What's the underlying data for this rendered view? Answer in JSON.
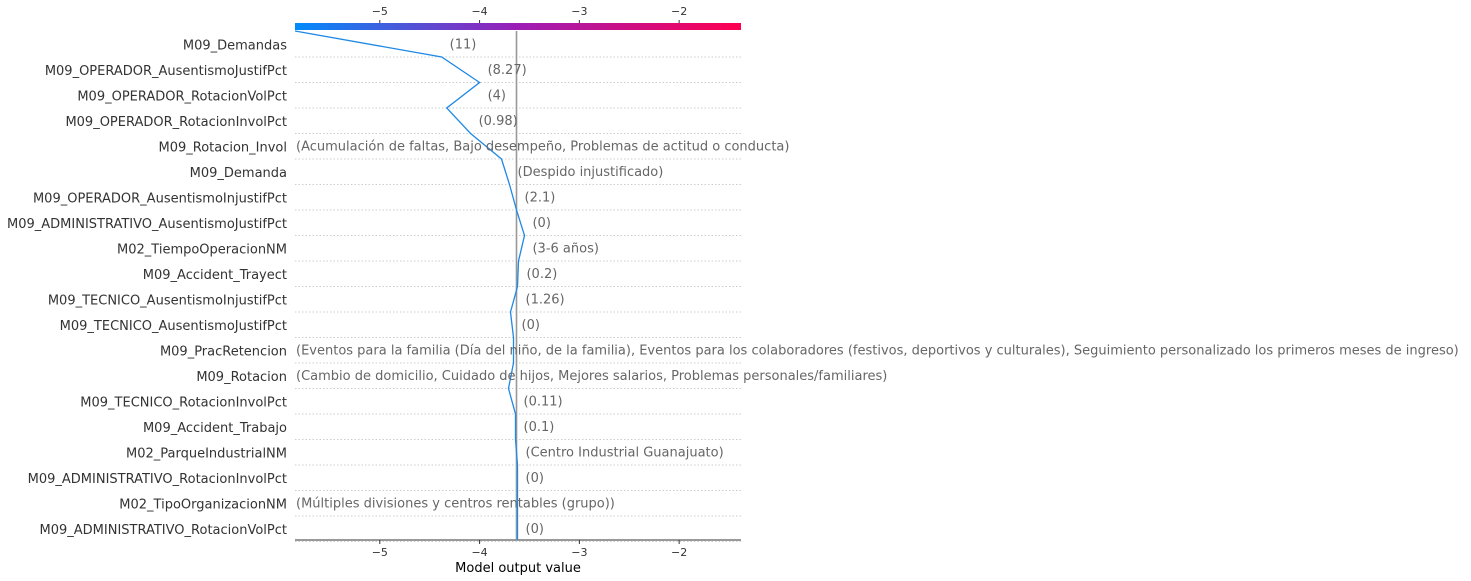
{
  "chart_data": {
    "type": "line",
    "subtype": "shap-decision-plot",
    "xlabel": "Model output value",
    "xlim": [
      -5.85,
      -1.38
    ],
    "xticks": [
      -5,
      -4,
      -3,
      -2
    ],
    "base_value": -3.63,
    "colorbar": {
      "low_color": "#008bfb",
      "mid_color": "#9c1db5",
      "high_color": "#ff0051",
      "range": [
        -5.85,
        -1.38
      ]
    },
    "line_color": "#1e88e5",
    "base_line_color": "#999999",
    "features": [
      {
        "name": "M09_Demandas",
        "value": "(11)"
      },
      {
        "name": "M09_OPERADOR_AusentismoJustifPct",
        "value": "(8.27)"
      },
      {
        "name": "M09_OPERADOR_RotacionVolPct",
        "value": "(4)"
      },
      {
        "name": "M09_OPERADOR_RotacionInvolPct",
        "value": "(0.98)"
      },
      {
        "name": "M09_Rotacion_Invol",
        "value": "(Acumulación de faltas, Bajo desempeño, Problemas de actitud o conducta)"
      },
      {
        "name": "M09_Demanda",
        "value": "(Despido injustificado)"
      },
      {
        "name": "M09_OPERADOR_AusentismoInjustifPct",
        "value": "(2.1)"
      },
      {
        "name": "M09_ADMINISTRATIVO_AusentismoJustifPct",
        "value": "(0)"
      },
      {
        "name": "M02_TiempoOperacionNM",
        "value": "(3-6 años)"
      },
      {
        "name": "M09_Accident_Trayect",
        "value": "(0.2)"
      },
      {
        "name": "M09_TECNICO_AusentismoInjustifPct",
        "value": "(1.26)"
      },
      {
        "name": "M09_TECNICO_AusentismoJustifPct",
        "value": "(0)"
      },
      {
        "name": "M09_PracRetencion",
        "value": "(Eventos para la familia (Día del niño, de la familia), Eventos para los colaboradores (festivos, deportivos y culturales), Seguimiento personalizado los primeros meses de ingreso)"
      },
      {
        "name": "M09_Rotacion",
        "value": "(Cambio de domicilio, Cuidado de hijos, Mejores salarios, Problemas personales/familiares)"
      },
      {
        "name": "M09_TECNICO_RotacionInvolPct",
        "value": "(0.11)"
      },
      {
        "name": "M09_Accident_Trabajo",
        "value": "(0.1)"
      },
      {
        "name": "M02_ParqueIndustrialNM",
        "value": "(Centro Industrial Guanajuato)"
      },
      {
        "name": "M09_ADMINISTRATIVO_RotacionInvolPct",
        "value": "(0)"
      },
      {
        "name": "M02_TipoOrganizacionNM",
        "value": "(Múltiples divisiones y centros rentables (grupo))"
      },
      {
        "name": "M09_ADMINISTRATIVO_RotacionVolPct",
        "value": "(0)"
      }
    ],
    "path_values": [
      -5.85,
      -4.38,
      -4.0,
      -4.33,
      -4.09,
      -3.78,
      -3.7,
      -3.63,
      -3.55,
      -3.61,
      -3.62,
      -3.69,
      -3.66,
      -3.66,
      -3.71,
      -3.64,
      -3.64,
      -3.62,
      -3.62,
      -3.62,
      -3.62
    ]
  }
}
